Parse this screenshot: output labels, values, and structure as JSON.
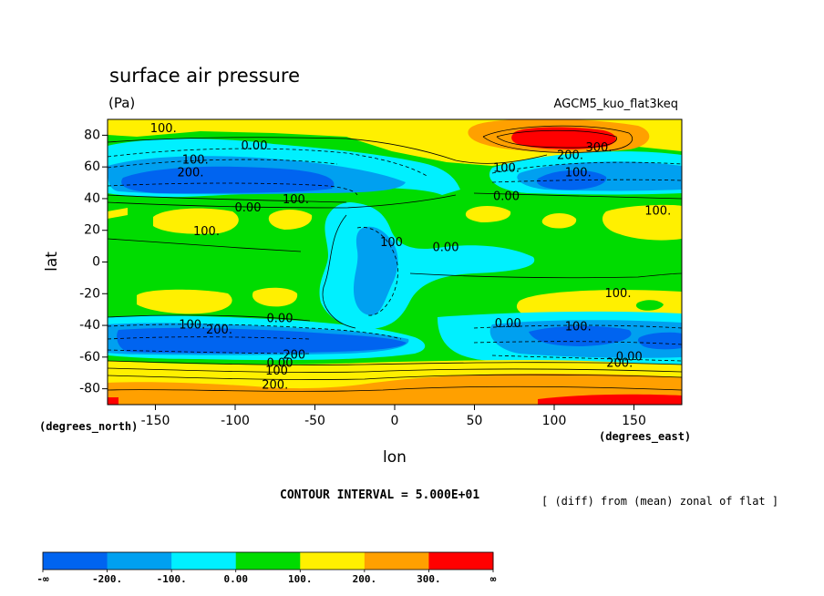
{
  "chart_data": {
    "type": "heatmap",
    "title": "surface air pressure",
    "units": "(Pa)",
    "experiment": "AGCM5_kuo_flat3keq",
    "xlabel": "lon",
    "ylabel": "lat",
    "x_unit_label": "(degrees_east)",
    "y_unit_label": "(degrees_north)",
    "xlim": [
      -180,
      180
    ],
    "ylim": [
      -90,
      90
    ],
    "xticks": [
      -150,
      -100,
      -50,
      0,
      50,
      100,
      150
    ],
    "yticks": [
      80,
      60,
      40,
      20,
      0,
      -20,
      -40,
      -60,
      -80
    ],
    "contour_interval_text": "CONTOUR INTERVAL = 5.000E+01",
    "contour_interval": 50,
    "description": "[ (diff) from (mean) zonal of flat ]",
    "colorbar": {
      "boundary_labels": [
        "-∞",
        "-200.",
        "-100.",
        "0.00",
        "100.",
        "200.",
        "300.",
        "∞"
      ],
      "levels": [
        -200,
        -100,
        0,
        100,
        200,
        300
      ],
      "colors": [
        "#0064f0",
        "#00a0f0",
        "#00f0ff",
        "#00dc00",
        "#fff000",
        "#ffa000",
        "#ff0000"
      ]
    },
    "contour_labels": [
      {
        "text": "100.",
        "lon": -145,
        "lat": 84
      },
      {
        "text": "0.00",
        "lon": -88,
        "lat": 73
      },
      {
        "text": "100.",
        "lon": -125,
        "lat": 64
      },
      {
        "text": "200.",
        "lon": -128,
        "lat": 56
      },
      {
        "text": "0.00",
        "lon": -92,
        "lat": 34
      },
      {
        "text": "100.",
        "lon": -62,
        "lat": 39
      },
      {
        "text": "100.",
        "lon": -118,
        "lat": 19
      },
      {
        "text": "100",
        "lon": -2,
        "lat": 12
      },
      {
        "text": "0.00",
        "lon": 32,
        "lat": 9
      },
      {
        "text": "100.",
        "lon": 70,
        "lat": 59
      },
      {
        "text": "200.",
        "lon": 110,
        "lat": 67
      },
      {
        "text": "300.",
        "lon": 128,
        "lat": 72
      },
      {
        "text": "100.",
        "lon": 115,
        "lat": 56
      },
      {
        "text": "0.00",
        "lon": 70,
        "lat": 41
      },
      {
        "text": "100.",
        "lon": 165,
        "lat": 32
      },
      {
        "text": "100.",
        "lon": 140,
        "lat": -20
      },
      {
        "text": "100.",
        "lon": -127,
        "lat": -40
      },
      {
        "text": "200.",
        "lon": -110,
        "lat": -43
      },
      {
        "text": "0.00",
        "lon": -72,
        "lat": -36
      },
      {
        "text": "0.00",
        "lon": 71,
        "lat": -39
      },
      {
        "text": "100.",
        "lon": 115,
        "lat": -41
      },
      {
        "text": "200",
        "lon": -63,
        "lat": -59
      },
      {
        "text": "0.00",
        "lon": -72,
        "lat": -64
      },
      {
        "text": "100",
        "lon": -74,
        "lat": -69
      },
      {
        "text": "200.",
        "lon": -75,
        "lat": -78
      },
      {
        "text": "200.",
        "lon": 141,
        "lat": -64
      },
      {
        "text": "0.00",
        "lon": 147,
        "lat": -60
      }
    ]
  }
}
